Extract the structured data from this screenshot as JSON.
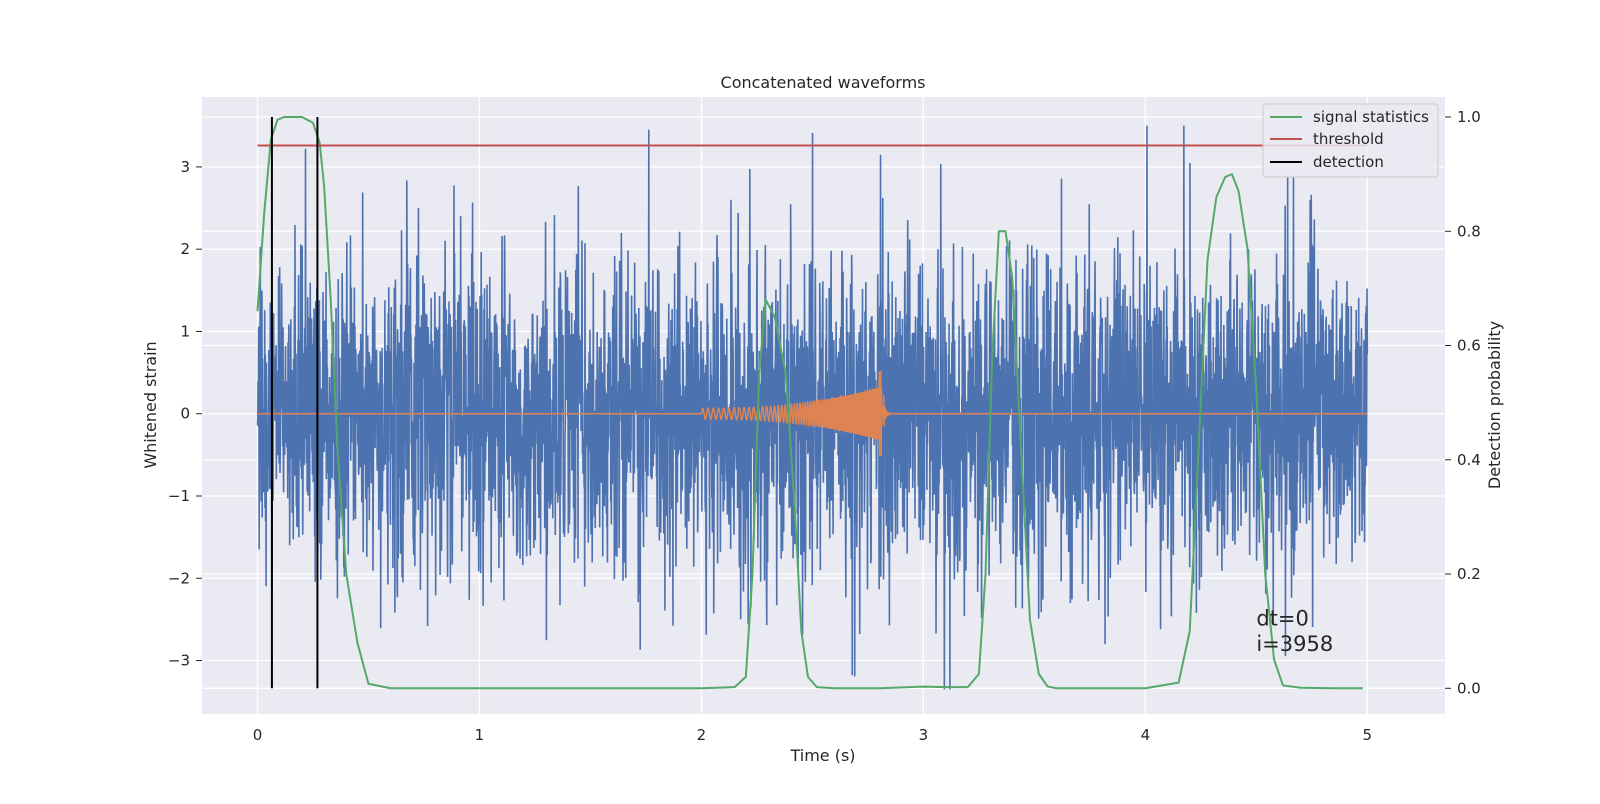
{
  "chart_data": {
    "type": "line",
    "title": "Concatenated waveforms",
    "xlabel": "Time (s)",
    "ylabel_left": "Whitened strain",
    "ylabel_right": "Detection probability",
    "xlim": [
      -0.25,
      5.35
    ],
    "ylim_left": [
      -3.65,
      3.85
    ],
    "ylim_right": [
      -0.045,
      1.035
    ],
    "x_ticks": [
      0,
      1,
      2,
      3,
      4,
      5
    ],
    "x_tick_labels": [
      "0",
      "1",
      "2",
      "3",
      "4",
      "5"
    ],
    "y_left_ticks": [
      -3,
      -2,
      -1,
      0,
      1,
      2,
      3
    ],
    "y_left_tick_labels": [
      "−3",
      "−2",
      "−1",
      "0",
      "1",
      "2",
      "3"
    ],
    "y_right_ticks": [
      0.0,
      0.2,
      0.4,
      0.6,
      0.8,
      1.0
    ],
    "y_right_tick_labels": [
      "0.0",
      "0.2",
      "0.4",
      "0.6",
      "0.8",
      "1.0"
    ],
    "grid": true,
    "legend_position": "top-right",
    "legend": [
      {
        "label": "signal statistics",
        "color": "#55a868"
      },
      {
        "label": "threshold",
        "color": "#c44e52"
      },
      {
        "label": "detection",
        "color": "#000000"
      }
    ],
    "series": [
      {
        "name": "",
        "axis": "left",
        "color": "#4c72b0",
        "description_kind": "noise",
        "x_range": [
          0,
          5
        ],
        "amplitude_range": [
          -3.35,
          3.5
        ]
      },
      {
        "name": "",
        "axis": "left",
        "color": "#dd8452",
        "description_kind": "chirp",
        "x_range": [
          0,
          5
        ],
        "chirp_start": 2.0,
        "chirp_end": 2.82,
        "peak_amplitude": 0.45
      },
      {
        "name": "signal statistics",
        "axis": "right",
        "color": "#55a868",
        "x": [
          0.0,
          0.03,
          0.06,
          0.09,
          0.12,
          0.15,
          0.2,
          0.25,
          0.28,
          0.3,
          0.33,
          0.36,
          0.4,
          0.45,
          0.5,
          0.6,
          1.0,
          1.5,
          2.0,
          2.15,
          2.2,
          2.23,
          2.26,
          2.29,
          2.33,
          2.38,
          2.42,
          2.45,
          2.48,
          2.52,
          2.6,
          2.8,
          3.0,
          3.1,
          3.2,
          3.25,
          3.28,
          3.31,
          3.34,
          3.37,
          3.4,
          3.44,
          3.48,
          3.52,
          3.56,
          3.6,
          3.8,
          4.0,
          4.15,
          4.2,
          4.24,
          4.28,
          4.32,
          4.36,
          4.39,
          4.42,
          4.46,
          4.5,
          4.54,
          4.58,
          4.62,
          4.7,
          4.85,
          4.98
        ],
        "y": [
          0.66,
          0.83,
          0.96,
          0.995,
          1.0,
          1.0,
          1.0,
          0.99,
          0.955,
          0.88,
          0.68,
          0.42,
          0.2,
          0.08,
          0.008,
          0.0,
          0.0,
          0.0,
          0.0,
          0.002,
          0.02,
          0.2,
          0.55,
          0.68,
          0.65,
          0.55,
          0.32,
          0.1,
          0.02,
          0.002,
          0.0,
          0.0,
          0.003,
          0.002,
          0.002,
          0.025,
          0.2,
          0.58,
          0.8,
          0.8,
          0.72,
          0.42,
          0.12,
          0.025,
          0.003,
          0.0,
          0.0,
          0.0,
          0.01,
          0.1,
          0.42,
          0.75,
          0.86,
          0.895,
          0.9,
          0.87,
          0.77,
          0.52,
          0.2,
          0.05,
          0.005,
          0.001,
          0.0,
          0.0
        ]
      },
      {
        "name": "threshold",
        "axis": "right",
        "color": "#c44e52",
        "x": [
          0,
          5
        ],
        "y": [
          0.95,
          0.95
        ]
      },
      {
        "name": "detection",
        "axis": "right",
        "color": "#000000",
        "kind": "vlines",
        "x": [
          0.065,
          0.27
        ],
        "y_range": [
          0.0,
          1.0
        ]
      }
    ],
    "annotations": [
      {
        "text": "dt=0",
        "x": 4.5,
        "y": 0.11,
        "axis": "right"
      },
      {
        "text": "i=3958",
        "x": 4.5,
        "y": 0.065,
        "axis": "right"
      }
    ]
  },
  "colors": {
    "plot_background": "#eaeaf2",
    "grid": "#ffffff"
  }
}
